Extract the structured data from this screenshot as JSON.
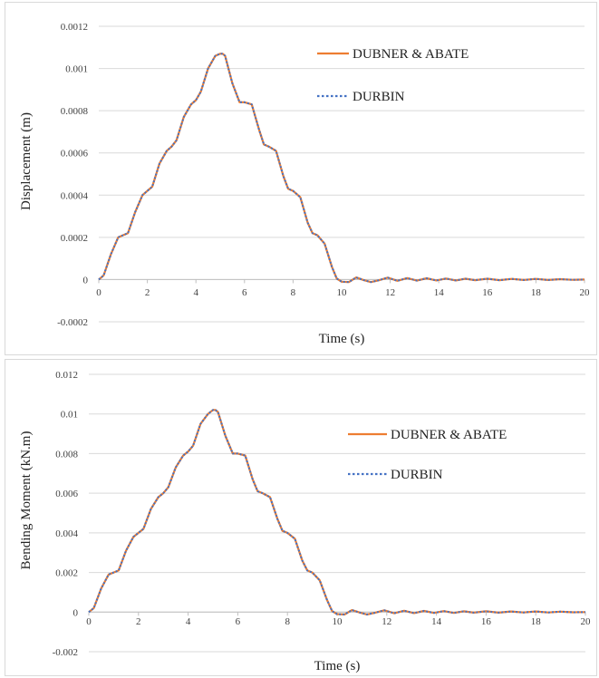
{
  "chart_data": [
    {
      "type": "line",
      "title": "",
      "xlabel": "Time (s)",
      "ylabel": "Displacement (m)",
      "xlim": [
        0,
        20
      ],
      "ylim": [
        -0.0002,
        0.0012
      ],
      "x_ticks": [
        "0",
        "2",
        "4",
        "6",
        "8",
        "10",
        "12",
        "14",
        "16",
        "18",
        "20"
      ],
      "y_ticks": [
        "-0.0002",
        "0",
        "0.0002",
        "0.0004",
        "0.0006",
        "0.0008",
        "0.001",
        "0.0012"
      ],
      "grid": "horizontal",
      "legend_position": "top-right",
      "x": [
        0,
        0.2,
        0.5,
        0.8,
        1.0,
        1.2,
        1.5,
        1.8,
        2.0,
        2.2,
        2.5,
        2.8,
        3.0,
        3.2,
        3.5,
        3.8,
        4.0,
        4.2,
        4.5,
        4.8,
        5.0,
        5.1,
        5.2,
        5.5,
        5.8,
        6.0,
        6.3,
        6.6,
        6.8,
        7.0,
        7.3,
        7.6,
        7.8,
        8.0,
        8.3,
        8.6,
        8.8,
        9.0,
        9.3,
        9.6,
        9.8,
        10.0,
        10.3,
        10.6,
        10.9,
        11.2,
        11.5,
        11.9,
        12.3,
        12.7,
        13.1,
        13.5,
        13.9,
        14.3,
        14.7,
        15.1,
        15.5,
        16.0,
        16.5,
        17.0,
        17.5,
        18.0,
        18.5,
        19.0,
        19.5,
        20.0
      ],
      "series": [
        {
          "name": "DUBNER & ABATE",
          "color": "#ed7d31",
          "style": "solid",
          "values": [
            0,
            2e-05,
            0.00012,
            0.0002,
            0.00021,
            0.00022,
            0.00032,
            0.0004,
            0.00042,
            0.00044,
            0.00055,
            0.00061,
            0.00063,
            0.00066,
            0.00077,
            0.00083,
            0.00085,
            0.00089,
            0.001,
            0.00106,
            0.00107,
            0.00107,
            0.00106,
            0.00093,
            0.00084,
            0.00084,
            0.00083,
            0.00071,
            0.00064,
            0.00063,
            0.00061,
            0.00049,
            0.00043,
            0.00042,
            0.00039,
            0.00027,
            0.00022,
            0.00021,
            0.00017,
            6e-05,
            5e-06,
            -1e-05,
            -1.2e-05,
            1e-05,
            -2e-06,
            -1.2e-05,
            -4e-06,
            9e-06,
            -6e-06,
            7e-06,
            -5e-06,
            6e-06,
            -4e-06,
            5e-06,
            -4e-06,
            4e-06,
            -3e-06,
            4e-06,
            -3e-06,
            3e-06,
            -2e-06,
            3e-06,
            -2e-06,
            2e-06,
            -1e-06,
            0
          ]
        },
        {
          "name": "DURBIN",
          "color": "#4472c4",
          "style": "dotted",
          "values": [
            0,
            2e-05,
            0.00012,
            0.0002,
            0.00021,
            0.00022,
            0.00032,
            0.0004,
            0.00042,
            0.00044,
            0.00055,
            0.00061,
            0.00063,
            0.00066,
            0.00077,
            0.00083,
            0.00085,
            0.00089,
            0.001,
            0.00106,
            0.00107,
            0.00107,
            0.00106,
            0.00093,
            0.00084,
            0.00084,
            0.00083,
            0.00071,
            0.00064,
            0.00063,
            0.00061,
            0.00049,
            0.00043,
            0.00042,
            0.00039,
            0.00027,
            0.00022,
            0.00021,
            0.00017,
            6e-05,
            5e-06,
            -1e-05,
            -1.2e-05,
            1e-05,
            -2e-06,
            -1.2e-05,
            -4e-06,
            9e-06,
            -6e-06,
            7e-06,
            -5e-06,
            6e-06,
            -4e-06,
            5e-06,
            -4e-06,
            4e-06,
            -3e-06,
            4e-06,
            -3e-06,
            3e-06,
            -2e-06,
            3e-06,
            -2e-06,
            2e-06,
            -1e-06,
            0
          ]
        }
      ]
    },
    {
      "type": "line",
      "title": "",
      "xlabel": "Time (s)",
      "ylabel": "Bending Moment (kN.m)",
      "xlim": [
        0,
        20
      ],
      "ylim": [
        -0.002,
        0.012
      ],
      "x_ticks": [
        "0",
        "2",
        "4",
        "6",
        "8",
        "10",
        "12",
        "14",
        "16",
        "18",
        "20"
      ],
      "y_ticks": [
        "-0.002",
        "0",
        "0.002",
        "0.004",
        "0.006",
        "0.008",
        "0.01",
        "0.012"
      ],
      "grid": "horizontal",
      "legend_position": "top-right",
      "x": [
        0,
        0.2,
        0.5,
        0.8,
        1.0,
        1.2,
        1.5,
        1.8,
        2.0,
        2.2,
        2.5,
        2.8,
        3.0,
        3.2,
        3.5,
        3.8,
        4.0,
        4.2,
        4.5,
        4.8,
        5.0,
        5.1,
        5.2,
        5.5,
        5.8,
        6.0,
        6.3,
        6.6,
        6.8,
        7.0,
        7.3,
        7.6,
        7.8,
        8.0,
        8.3,
        8.6,
        8.8,
        9.0,
        9.3,
        9.6,
        9.8,
        10.0,
        10.3,
        10.6,
        10.9,
        11.2,
        11.5,
        11.9,
        12.3,
        12.7,
        13.1,
        13.5,
        13.9,
        14.3,
        14.7,
        15.1,
        15.5,
        16.0,
        16.5,
        17.0,
        17.5,
        18.0,
        18.5,
        19.0,
        19.5,
        20.0
      ],
      "series": [
        {
          "name": "DUBNER & ABATE",
          "color": "#ed7d31",
          "style": "solid",
          "values": [
            0,
            0.0002,
            0.0012,
            0.0019,
            0.002,
            0.0021,
            0.0031,
            0.0038,
            0.004,
            0.0042,
            0.0052,
            0.0058,
            0.006,
            0.0063,
            0.0073,
            0.0079,
            0.0081,
            0.0084,
            0.0095,
            0.01,
            0.0102,
            0.0102,
            0.0101,
            0.0089,
            0.008,
            0.008,
            0.0079,
            0.0067,
            0.0061,
            0.006,
            0.0058,
            0.0047,
            0.0041,
            0.004,
            0.0037,
            0.0026,
            0.0021,
            0.002,
            0.0016,
            0.0006,
            5e-05,
            -0.0001,
            -0.00012,
            0.0001,
            -2e-05,
            -0.00012,
            -4e-05,
            9e-05,
            -6e-05,
            7e-05,
            -5e-05,
            6e-05,
            -4e-05,
            5e-05,
            -4e-05,
            4e-05,
            -3e-05,
            4e-05,
            -3e-05,
            3e-05,
            -2e-05,
            3e-05,
            -2e-05,
            2e-05,
            -1e-05,
            0
          ]
        },
        {
          "name": "DURBIN",
          "color": "#4472c4",
          "style": "dotted",
          "values": [
            0,
            0.0002,
            0.0012,
            0.0019,
            0.002,
            0.0021,
            0.0031,
            0.0038,
            0.004,
            0.0042,
            0.0052,
            0.0058,
            0.006,
            0.0063,
            0.0073,
            0.0079,
            0.0081,
            0.0084,
            0.0095,
            0.01,
            0.0102,
            0.0102,
            0.0101,
            0.0089,
            0.008,
            0.008,
            0.0079,
            0.0067,
            0.0061,
            0.006,
            0.0058,
            0.0047,
            0.0041,
            0.004,
            0.0037,
            0.0026,
            0.0021,
            0.002,
            0.0016,
            0.0006,
            5e-05,
            -0.0001,
            -0.00012,
            0.0001,
            -2e-05,
            -0.00012,
            -4e-05,
            9e-05,
            -6e-05,
            7e-05,
            -5e-05,
            6e-05,
            -4e-05,
            5e-05,
            -4e-05,
            4e-05,
            -3e-05,
            4e-05,
            -3e-05,
            3e-05,
            -2e-05,
            3e-05,
            -2e-05,
            2e-05,
            -1e-05,
            0
          ]
        }
      ]
    }
  ]
}
